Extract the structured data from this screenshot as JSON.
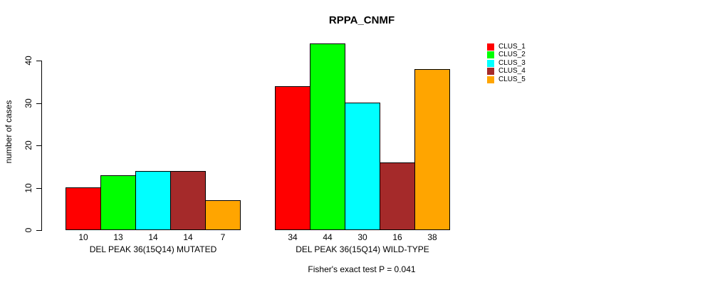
{
  "chart_data": {
    "type": "bar",
    "title": "RPPA_CNMF",
    "ylabel": "number of cases",
    "xlabel": "",
    "yticks": [
      0,
      10,
      20,
      30,
      40
    ],
    "ylim": [
      0,
      44
    ],
    "grid": false,
    "legend_position": "right-outside",
    "series": [
      {
        "name": "CLUS_1",
        "color": "#FF0000"
      },
      {
        "name": "CLUS_2",
        "color": "#00FF00"
      },
      {
        "name": "CLUS_3",
        "color": "#00FFFF"
      },
      {
        "name": "CLUS_4",
        "color": "#A52A2A"
      },
      {
        "name": "CLUS_5",
        "color": "#FFA500"
      }
    ],
    "groups": [
      {
        "label": "DEL PEAK 36(15Q14) MUTATED",
        "values": [
          10,
          13,
          14,
          14,
          7
        ]
      },
      {
        "label": "DEL PEAK 36(15Q14) WILD-TYPE",
        "values": [
          34,
          44,
          30,
          16,
          38
        ]
      }
    ],
    "annotation": "Fisher's exact test P = 0.041"
  }
}
